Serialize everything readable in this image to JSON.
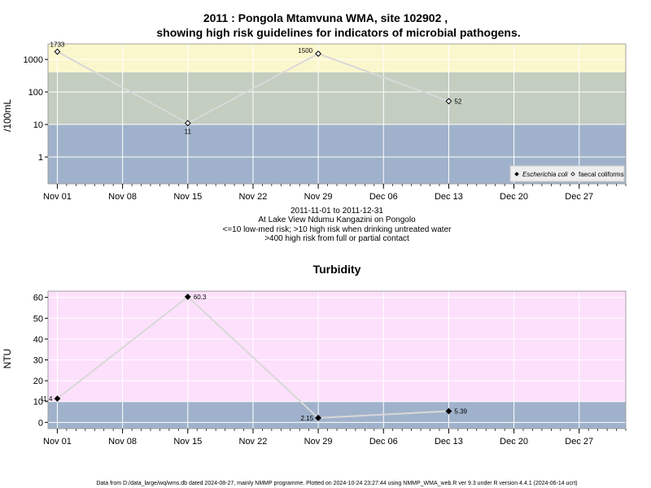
{
  "chart_data": [
    {
      "type": "line",
      "title_line1": "2011 : Pongola Mtamvuna WMA, site 102902 ,",
      "title_line2": "showing high risk guidelines for indicators of microbial pathogens.",
      "ylabel": "/100mL",
      "y_scale": "log",
      "y_ticks": [
        "1",
        "10",
        "100",
        "1000"
      ],
      "x_ticks": [
        "Nov 01",
        "Nov 08",
        "Nov 15",
        "Nov 22",
        "Nov 29",
        "Dec 06",
        "Dec 13",
        "Dec 20",
        "Dec 27"
      ],
      "xlim": [
        "2011-10-31",
        "2012-01-01"
      ],
      "ylim": [
        0.15,
        3000
      ],
      "grid": true,
      "bands": [
        {
          "from": 0.15,
          "to": 10,
          "color": "#a0b2cb"
        },
        {
          "from": 10,
          "to": 400,
          "color": "#c3cdc0"
        },
        {
          "from": 400,
          "to": 3000,
          "color": "#fbf7cd"
        }
      ],
      "series": [
        {
          "name": "Escherichia coli",
          "x": [],
          "values": []
        },
        {
          "name": "faecal coliforms",
          "x": [
            "2011-11-01",
            "2011-11-15",
            "2011-11-29",
            "2011-12-13"
          ],
          "values": [
            1733,
            11,
            1500,
            52
          ],
          "labels": [
            "1733",
            "11",
            "1500",
            "52"
          ]
        }
      ],
      "legend_position": "bottom-right",
      "info_lines": [
        "2011-11-01 to 2011-12-31",
        "At Lake View Ndumu Kangazini on Pongolo",
        "<=10 low-med risk; >10 high risk when drinking untreated water",
        ">400 high risk from full or partial contact"
      ]
    },
    {
      "type": "line",
      "title": "Turbidity",
      "ylabel": "NTU",
      "y_ticks": [
        "0",
        "10",
        "20",
        "30",
        "40",
        "50",
        "60"
      ],
      "x_ticks": [
        "Nov 01",
        "Nov 08",
        "Nov 15",
        "Nov 22",
        "Nov 29",
        "Dec 06",
        "Dec 13",
        "Dec 20",
        "Dec 27"
      ],
      "xlim": [
        "2011-10-31",
        "2012-01-01"
      ],
      "ylim": [
        -3,
        63
      ],
      "grid": true,
      "bands": [
        {
          "from": -3,
          "to": 10,
          "color": "#a0b2cb"
        },
        {
          "from": 10,
          "to": 63,
          "color": "#fde0fc"
        }
      ],
      "series": [
        {
          "name": "",
          "x": [
            "2011-11-01",
            "2011-11-15",
            "2011-11-29",
            "2011-12-13"
          ],
          "values": [
            11.4,
            60.3,
            2.15,
            5.39
          ],
          "labels": [
            "11.4",
            "60.3",
            "2.15",
            "5.39"
          ]
        }
      ]
    }
  ],
  "footer": "Data from D:/data_large/wq/wms.db dated 2024-08-27, mainly NMMP programme. Plotted on 2024-10-24 23:27:44 using NMMP_WMA_web.R ver 9.3 under R version 4.4.1 (2024-06-14 ucrt)",
  "colors": {
    "line": "#d8d8d8",
    "grid": "#ffffff",
    "frame": "#a0a0a0",
    "marker": "#000000"
  }
}
